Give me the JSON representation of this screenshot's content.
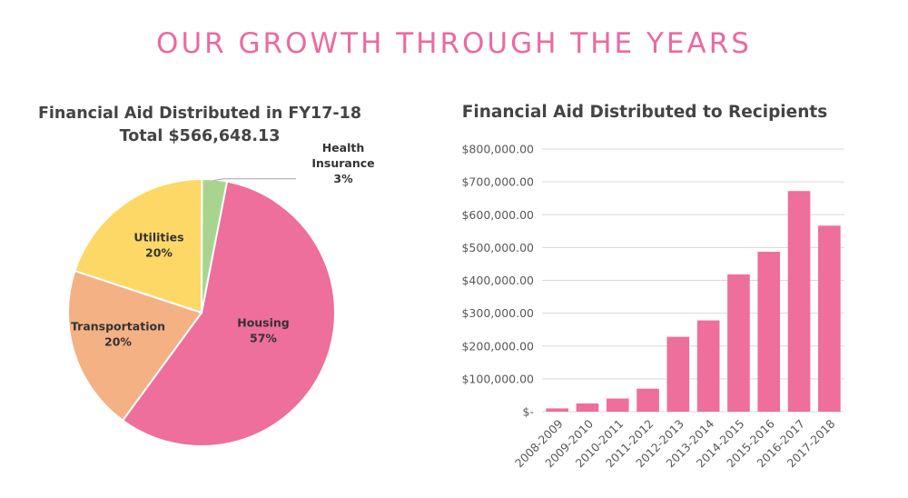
{
  "page": {
    "title": "OUR GROWTH THROUGH THE YEARS"
  },
  "colors": {
    "title": "#ea6aa0",
    "housing": "#ee6e9c",
    "transportation": "#f3b184",
    "utilities": "#fdd867",
    "health_insurance": "#a9d48f",
    "bar": "#ee6e9c",
    "grid": "#d9d9d9"
  },
  "chart_data": [
    {
      "type": "pie",
      "title": "Financial Aid Distributed in FY17-18",
      "subtitle": "Total $566,648.13",
      "slices": [
        {
          "label": "Housing",
          "value": 57,
          "pct_label": "57%",
          "color": "#ee6e9c"
        },
        {
          "label": "Transportation",
          "value": 20,
          "pct_label": "20%",
          "color": "#f3b184"
        },
        {
          "label": "Utilities",
          "value": 20,
          "pct_label": "20%",
          "color": "#fdd867"
        },
        {
          "label": "Health Insurance",
          "label_lines": [
            "Health",
            "Insurance"
          ],
          "value": 3,
          "pct_label": "3%",
          "color": "#a9d48f"
        }
      ],
      "legend": "none"
    },
    {
      "type": "bar",
      "title": "Financial Aid Distributed to Recipients",
      "categories": [
        "2008-2009",
        "2009-2010",
        "2010-2011",
        "2011-2012",
        "2012-2013",
        "2013-2014",
        "2014-2015",
        "2015-2016",
        "2016-2017",
        "2017-2018"
      ],
      "values": [
        10000,
        25000,
        40000,
        70000,
        228000,
        278000,
        418000,
        487000,
        672000,
        566648.13
      ],
      "ylim": [
        0,
        800000
      ],
      "yticks": [
        0,
        100000,
        200000,
        300000,
        400000,
        500000,
        600000,
        700000,
        800000
      ],
      "ytick_labels": [
        "$-",
        "$100,000.00",
        "$200,000.00",
        "$300,000.00",
        "$400,000.00",
        "$500,000.00",
        "$600,000.00",
        "$700,000.00",
        "$800,000.00"
      ],
      "grid": true,
      "legend": "none"
    }
  ]
}
